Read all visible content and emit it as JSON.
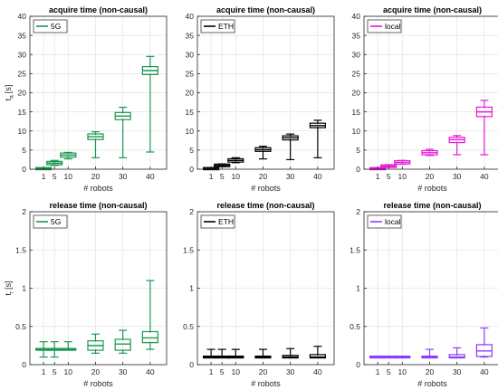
{
  "figure": {
    "background": "#ffffff",
    "axis_color": "#262626",
    "grid_color": "#e3e3e3",
    "xlabel": "# robots"
  },
  "chart_data": [
    {
      "type": "box",
      "title": "acquire time (non-causal)",
      "ylabel_main": "t",
      "ylabel_sub": "a",
      "ylabel_unit": "[s]",
      "xlabel": "# robots",
      "categories": [
        "1",
        "5",
        "10",
        "20",
        "30",
        "40"
      ],
      "x": [
        1,
        5,
        10,
        20,
        30,
        40
      ],
      "ylim": [
        0,
        40
      ],
      "yticks": [
        "0",
        "5",
        "10",
        "15",
        "20",
        "25",
        "30",
        "35",
        "40"
      ],
      "ytick_values": [
        0,
        5,
        10,
        15,
        20,
        25,
        30,
        35,
        40
      ],
      "grid": true,
      "legend": "5G",
      "legend_position": "top-left",
      "color": "#1a9850",
      "boxes": [
        {
          "min": 0.05,
          "q1": 0.1,
          "median": 0.15,
          "q3": 0.2,
          "max": 0.3
        },
        {
          "min": 1.0,
          "q1": 1.4,
          "median": 1.6,
          "q3": 1.8,
          "max": 2.3
        },
        {
          "min": 2.7,
          "q1": 3.4,
          "median": 3.7,
          "q3": 4.0,
          "max": 4.4
        },
        {
          "min": 3.0,
          "q1": 8.0,
          "median": 8.5,
          "q3": 9.0,
          "max": 9.8
        },
        {
          "min": 3.0,
          "q1": 13.2,
          "median": 13.9,
          "q3": 14.6,
          "max": 16.2
        },
        {
          "min": 4.5,
          "q1": 25.0,
          "median": 25.8,
          "q3": 26.6,
          "max": 29.5
        }
      ]
    },
    {
      "type": "box",
      "title": "acquire time (non-causal)",
      "ylabel_main": "",
      "ylabel_sub": "",
      "ylabel_unit": "",
      "xlabel": "# robots",
      "categories": [
        "1",
        "5",
        "10",
        "20",
        "30",
        "40"
      ],
      "x": [
        1,
        5,
        10,
        20,
        30,
        40
      ],
      "ylim": [
        0,
        40
      ],
      "yticks": [
        "0",
        "5",
        "10",
        "15",
        "20",
        "25",
        "30",
        "35",
        "40"
      ],
      "ytick_values": [
        0,
        5,
        10,
        15,
        20,
        25,
        30,
        35,
        40
      ],
      "grid": true,
      "legend": "ETH",
      "legend_position": "top-left",
      "color": "#000000",
      "boxes": [
        {
          "min": 0.05,
          "q1": 0.1,
          "median": 0.15,
          "q3": 0.2,
          "max": 0.3
        },
        {
          "min": 0.7,
          "q1": 0.9,
          "median": 1.0,
          "q3": 1.1,
          "max": 1.4
        },
        {
          "min": 1.7,
          "q1": 2.1,
          "median": 2.3,
          "q3": 2.5,
          "max": 3.0
        },
        {
          "min": 2.7,
          "q1": 4.9,
          "median": 5.1,
          "q3": 5.4,
          "max": 6.0
        },
        {
          "min": 2.5,
          "q1": 7.9,
          "median": 8.2,
          "q3": 8.5,
          "max": 9.2
        },
        {
          "min": 3.0,
          "q1": 11.1,
          "median": 11.4,
          "q3": 11.8,
          "max": 12.8
        }
      ]
    },
    {
      "type": "box",
      "title": "acquire time (non-causal)",
      "ylabel_main": "",
      "ylabel_sub": "",
      "ylabel_unit": "",
      "xlabel": "# robots",
      "categories": [
        "1",
        "5",
        "10",
        "20",
        "30",
        "40"
      ],
      "x": [
        1,
        5,
        10,
        20,
        30,
        40
      ],
      "ylim": [
        0,
        40
      ],
      "yticks": [
        "0",
        "5",
        "10",
        "15",
        "20",
        "25",
        "30",
        "35",
        "40"
      ],
      "ytick_values": [
        0,
        5,
        10,
        15,
        20,
        25,
        30,
        35,
        40
      ],
      "grid": true,
      "legend": "local",
      "legend_position": "top-left",
      "color": "#e619d6",
      "boxes": [
        {
          "min": 0.05,
          "q1": 0.1,
          "median": 0.15,
          "q3": 0.2,
          "max": 0.3
        },
        {
          "min": 0.5,
          "q1": 0.7,
          "median": 0.8,
          "q3": 0.9,
          "max": 1.2
        },
        {
          "min": 1.3,
          "q1": 1.6,
          "median": 1.8,
          "q3": 2.0,
          "max": 2.3
        },
        {
          "min": 3.6,
          "q1": 4.0,
          "median": 4.3,
          "q3": 4.6,
          "max": 5.2
        },
        {
          "min": 3.8,
          "q1": 7.2,
          "median": 7.7,
          "q3": 8.1,
          "max": 8.8
        },
        {
          "min": 3.8,
          "q1": 14.0,
          "median": 15.0,
          "q3": 16.0,
          "max": 18.0
        }
      ]
    },
    {
      "type": "box",
      "title": "release time (non-causal)",
      "ylabel_main": "t",
      "ylabel_sub": "r",
      "ylabel_unit": "[s]",
      "xlabel": "# robots",
      "categories": [
        "1",
        "5",
        "10",
        "20",
        "30",
        "40"
      ],
      "x": [
        1,
        5,
        10,
        20,
        30,
        40
      ],
      "ylim": [
        0,
        2
      ],
      "yticks": [
        "0",
        "0.5",
        "1",
        "1.5",
        "2"
      ],
      "ytick_values": [
        0,
        0.5,
        1,
        1.5,
        2
      ],
      "grid": true,
      "legend": "5G",
      "legend_position": "top-left",
      "color": "#1a9850",
      "boxes": [
        {
          "min": 0.1,
          "q1": 0.2,
          "median": 0.2,
          "q3": 0.2,
          "max": 0.3
        },
        {
          "min": 0.1,
          "q1": 0.2,
          "median": 0.2,
          "q3": 0.2,
          "max": 0.3
        },
        {
          "min": 0.2,
          "q1": 0.2,
          "median": 0.2,
          "q3": 0.2,
          "max": 0.3
        },
        {
          "min": 0.15,
          "q1": 0.2,
          "median": 0.25,
          "q3": 0.3,
          "max": 0.4
        },
        {
          "min": 0.15,
          "q1": 0.2,
          "median": 0.27,
          "q3": 0.32,
          "max": 0.45
        },
        {
          "min": 0.2,
          "q1": 0.3,
          "median": 0.35,
          "q3": 0.42,
          "max": 1.1
        }
      ]
    },
    {
      "type": "box",
      "title": "release time (non-causal)",
      "ylabel_main": "",
      "ylabel_sub": "",
      "ylabel_unit": "",
      "xlabel": "# robots",
      "categories": [
        "1",
        "5",
        "10",
        "20",
        "30",
        "40"
      ],
      "x": [
        1,
        5,
        10,
        20,
        30,
        40
      ],
      "ylim": [
        0,
        2
      ],
      "yticks": [
        "0",
        "0.5",
        "1",
        "1.5",
        "2"
      ],
      "ytick_values": [
        0,
        0.5,
        1,
        1.5,
        2
      ],
      "grid": true,
      "legend": "ETH",
      "legend_position": "top-left",
      "color": "#000000",
      "boxes": [
        {
          "min": 0.1,
          "q1": 0.1,
          "median": 0.1,
          "q3": 0.1,
          "max": 0.2
        },
        {
          "min": 0.1,
          "q1": 0.1,
          "median": 0.1,
          "q3": 0.1,
          "max": 0.2
        },
        {
          "min": 0.1,
          "q1": 0.1,
          "median": 0.1,
          "q3": 0.1,
          "max": 0.2
        },
        {
          "min": 0.1,
          "q1": 0.1,
          "median": 0.1,
          "q3": 0.1,
          "max": 0.2
        },
        {
          "min": 0.1,
          "q1": 0.1,
          "median": 0.1,
          "q3": 0.11,
          "max": 0.21
        },
        {
          "min": 0.1,
          "q1": 0.1,
          "median": 0.1,
          "q3": 0.12,
          "max": 0.24
        }
      ]
    },
    {
      "type": "box",
      "title": "release time (non-causal)",
      "ylabel_main": "",
      "ylabel_sub": "",
      "ylabel_unit": "",
      "xlabel": "# robots",
      "categories": [
        "1",
        "5",
        "10",
        "20",
        "30",
        "40"
      ],
      "x": [
        1,
        5,
        10,
        20,
        30,
        40
      ],
      "ylim": [
        0,
        2
      ],
      "yticks": [
        "0",
        "0.5",
        "1",
        "1.5",
        "2"
      ],
      "ytick_values": [
        0,
        0.5,
        1,
        1.5,
        2
      ],
      "grid": true,
      "legend": "local",
      "legend_position": "top-left",
      "color": "#8a3ffc",
      "boxes": [
        {
          "min": 0.1,
          "q1": 0.1,
          "median": 0.1,
          "q3": 0.1,
          "max": 0.1
        },
        {
          "min": 0.1,
          "q1": 0.1,
          "median": 0.1,
          "q3": 0.1,
          "max": 0.1
        },
        {
          "min": 0.1,
          "q1": 0.1,
          "median": 0.1,
          "q3": 0.1,
          "max": 0.1
        },
        {
          "min": 0.1,
          "q1": 0.1,
          "median": 0.1,
          "q3": 0.1,
          "max": 0.2
        },
        {
          "min": 0.1,
          "q1": 0.1,
          "median": 0.1,
          "q3": 0.12,
          "max": 0.22
        },
        {
          "min": 0.1,
          "q1": 0.12,
          "median": 0.18,
          "q3": 0.25,
          "max": 0.48
        }
      ]
    }
  ]
}
